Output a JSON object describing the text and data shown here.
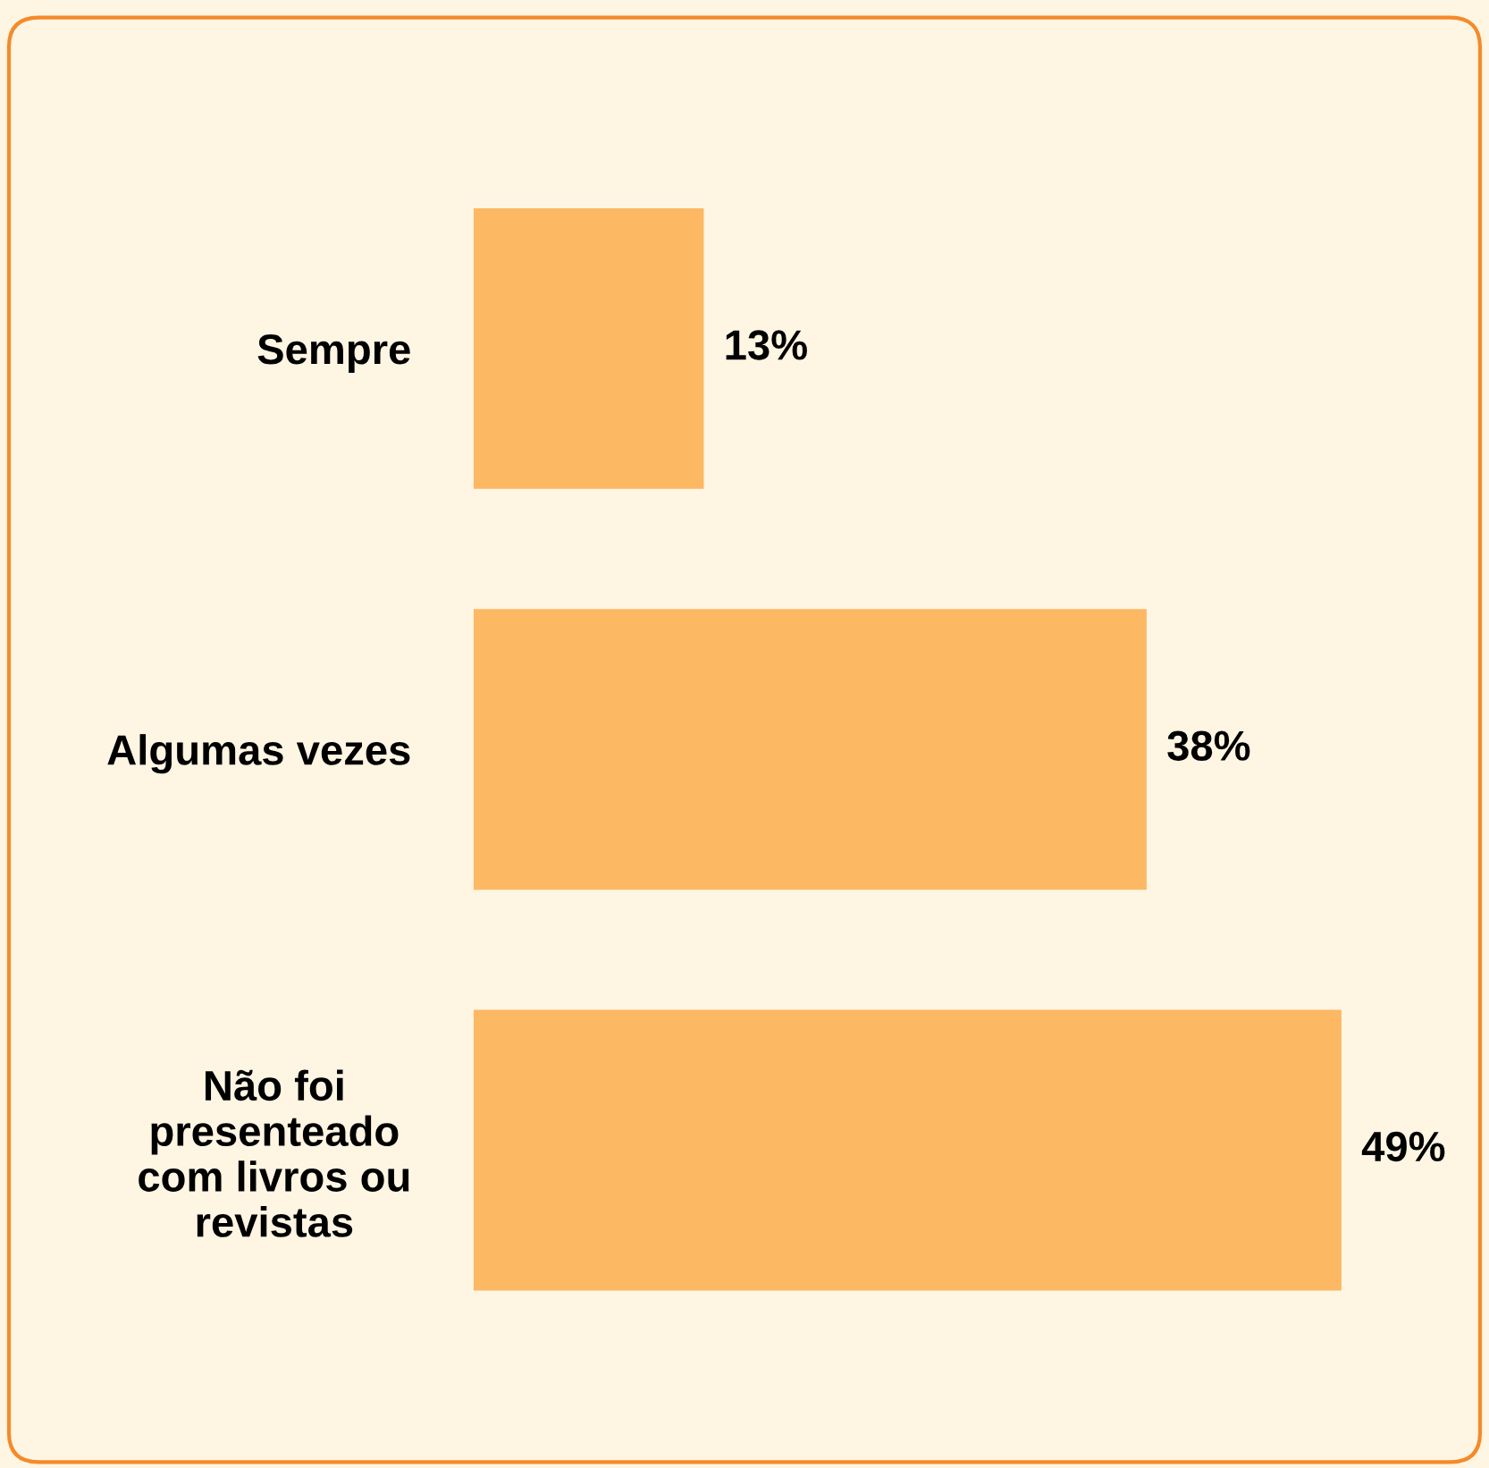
{
  "chart_data": {
    "type": "bar",
    "orientation": "horizontal",
    "categories": [
      "Sempre",
      "Algumas vezes",
      "Não foi\npresenteado\ncom livros ou\nrevistas"
    ],
    "values": [
      13,
      38,
      49
    ],
    "value_labels": [
      "13%",
      "38%",
      "49%"
    ],
    "color": "#fdb863"
  }
}
